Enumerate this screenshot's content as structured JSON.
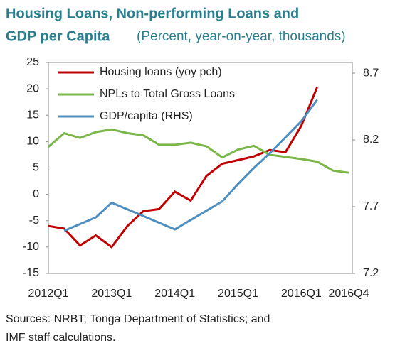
{
  "chart_data": {
    "type": "line",
    "title": [
      "Housing Loans, Non-performing Loans and",
      "GDP per Capita"
    ],
    "subtitle": "(Percent, year-on-year, thousands)",
    "source": [
      "Sources: NRBT; Tonga Department of Statistics; and",
      "IMF staff calculations."
    ],
    "categories": [
      "2012Q1",
      null,
      null,
      null,
      "2013Q1",
      null,
      null,
      null,
      "2014Q1",
      null,
      null,
      null,
      "2015Q1",
      null,
      null,
      null,
      "2016Q1",
      null,
      null,
      "2016Q4"
    ],
    "series": [
      {
        "name": "Housing loans (yoy pch)",
        "color": "#c00000",
        "values": [
          -6,
          -6.5,
          -9.7,
          -7.8,
          -10,
          -6,
          -3.2,
          -2.8,
          0.5,
          -1.2,
          3.5,
          5.8,
          6.5,
          7.2,
          8.4,
          8,
          13,
          20.3,
          null,
          null
        ]
      },
      {
        "name": "NPLs to Total Gross Loans",
        "color": "#7ab648",
        "values": [
          9,
          11.6,
          10.7,
          11.8,
          12.3,
          11.6,
          11.2,
          9.4,
          9.4,
          9.8,
          9.1,
          7,
          8.5,
          9.2,
          7.5,
          7.1,
          6.7,
          6.2,
          4.5,
          4.1
        ]
      },
      {
        "name": "GDP/capita (RHS)",
        "color": "#4f8fc0",
        "axis": "y2",
        "values": [
          null,
          7.52,
          7.57,
          7.62,
          7.73,
          7.68,
          7.63,
          7.58,
          7.53,
          7.6,
          7.67,
          7.74,
          7.87,
          7.99,
          8.1,
          8.22,
          8.34,
          8.5,
          null,
          null
        ]
      }
    ],
    "ylim": [
      -15,
      25
    ],
    "yticks": [
      -15,
      -10,
      -5,
      0,
      5,
      10,
      15,
      20,
      25
    ],
    "y2lim": [
      7.2,
      8.78
    ],
    "y2ticks": [
      7.2,
      7.7,
      8.2,
      8.7
    ],
    "legend": "upper left"
  }
}
